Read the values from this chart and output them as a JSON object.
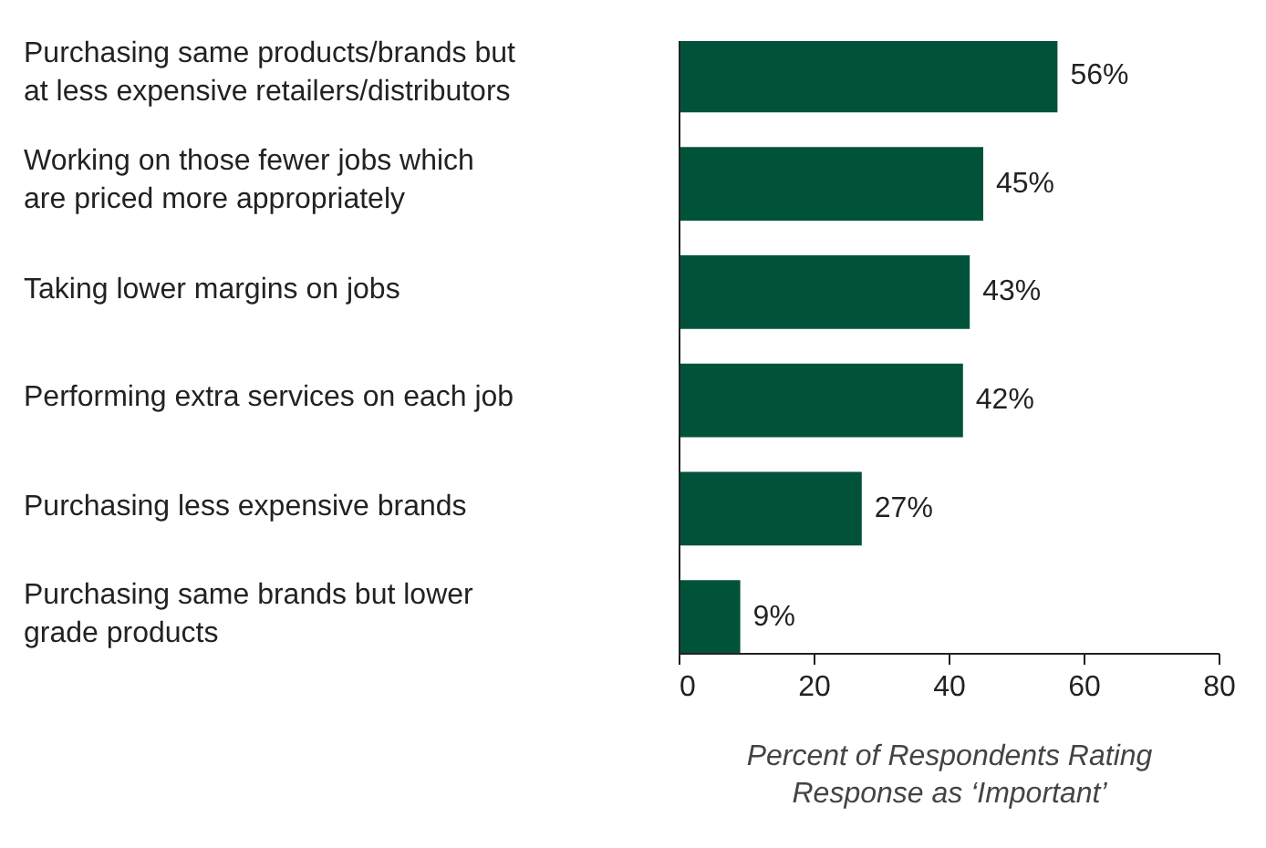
{
  "chart_data": {
    "type": "bar",
    "orientation": "horizontal",
    "categories": [
      "Purchasing same products/brands but\nat less expensive retailers/distributors",
      "Working on those fewer jobs which\nare priced more appropriately",
      "Taking lower margins on jobs",
      "Performing extra services on each job",
      "Purchasing less expensive brands",
      "Purchasing same brands but lower\ngrade products"
    ],
    "values": [
      56,
      45,
      43,
      42,
      27,
      9
    ],
    "value_labels": [
      "56%",
      "45%",
      "43%",
      "42%",
      "27%",
      "9%"
    ],
    "color": "#00533a",
    "xlim": [
      0,
      80
    ],
    "xticks": [
      0,
      20,
      40,
      60,
      80
    ],
    "xlabel": "Percent of Respondents Rating\nResponse as ‘Important’",
    "grid": false
  }
}
